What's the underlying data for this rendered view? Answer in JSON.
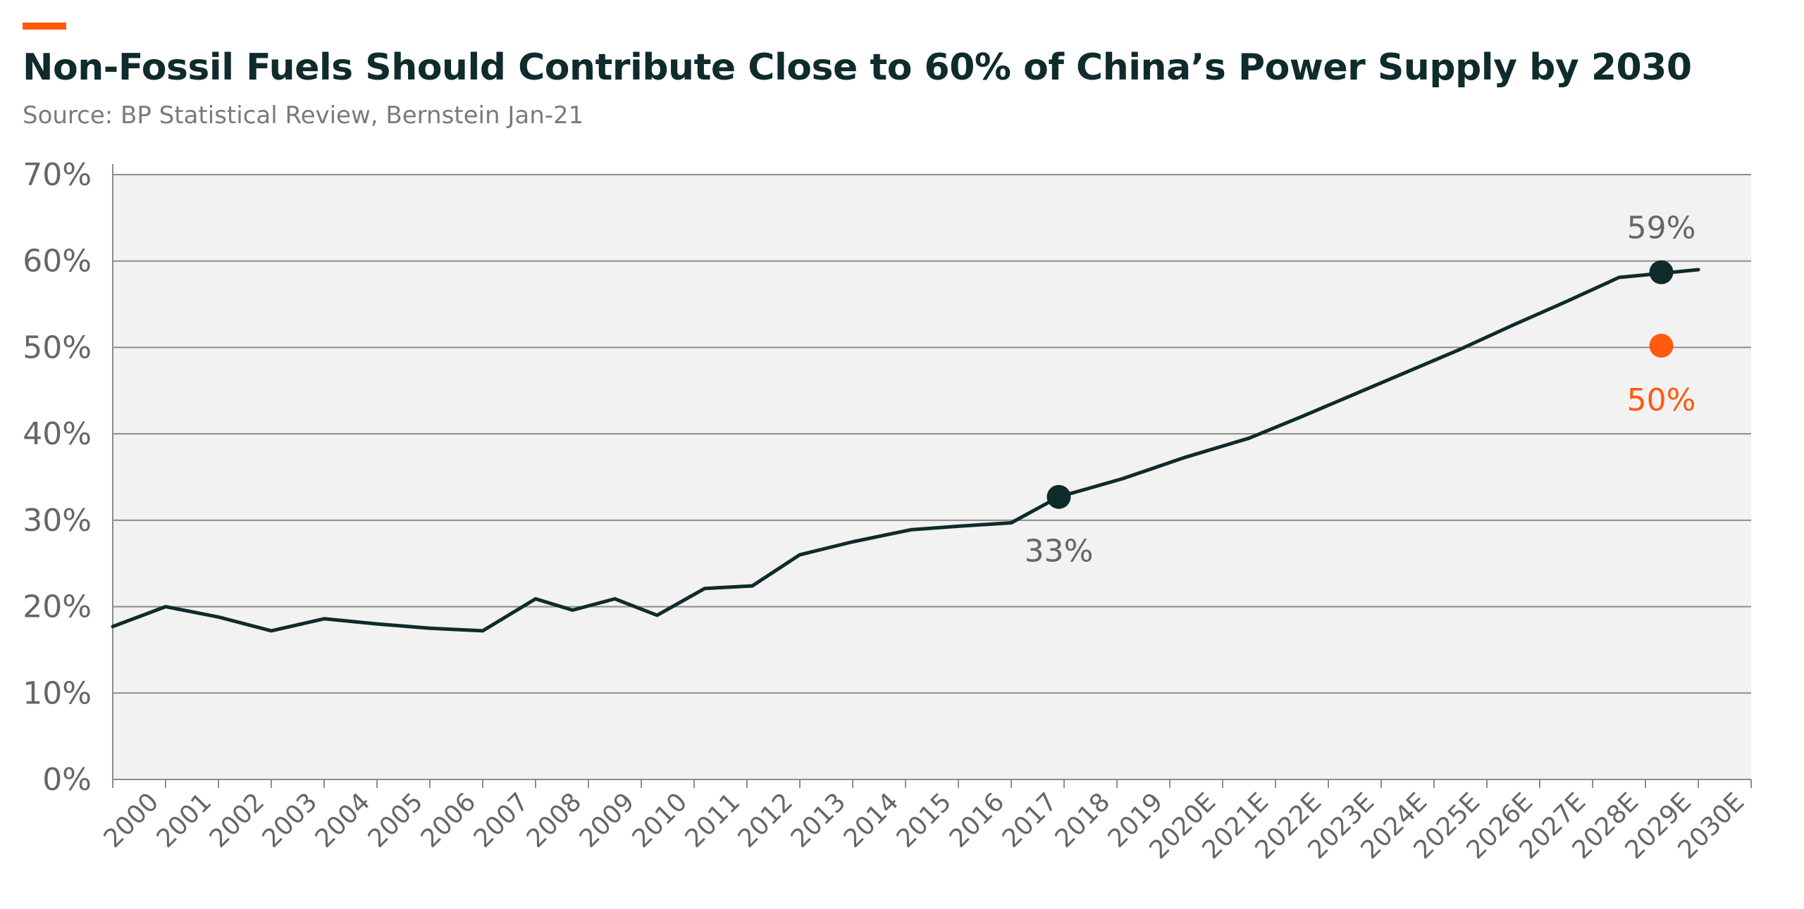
{
  "title": "Non-Fossil Fuels Should Contribute Close to 60% of China’s Power Supply by 2030",
  "subtitle": "Source: BP Statistical Review, Bernstein Jan-21",
  "colors": {
    "accent": "#ff5a0d",
    "line": "#0f2b2b",
    "plot_bg": "#f2f2f2",
    "grid": "#8c8c8c",
    "label": "#666666"
  },
  "chart_data": {
    "type": "line",
    "title": "Non-Fossil Fuels Should Contribute Close to 60% of China’s Power Supply by 2030",
    "xlabel": "",
    "ylabel": "",
    "ylim": [
      0,
      70
    ],
    "yticks": [
      "0%",
      "10%",
      "20%",
      "30%",
      "40%",
      "50%",
      "60%",
      "70%"
    ],
    "grid": true,
    "categories": [
      "2000",
      "2001",
      "2002",
      "2003",
      "2004",
      "2005",
      "2006",
      "2007",
      "2008",
      "2009",
      "2010",
      "2011",
      "2012",
      "2013",
      "2014",
      "2015",
      "2016",
      "2017",
      "2018",
      "2019",
      "2020E",
      "2021E",
      "2022E",
      "2023E",
      "2024E",
      "2025E",
      "2026E",
      "2027E",
      "2028E",
      "2029E",
      "2030E"
    ],
    "series": [
      {
        "name": "",
        "x": [
          -0.5,
          0.5,
          1.5,
          2.5,
          3.5,
          4.5,
          5.5,
          6.5,
          7.5,
          8.2,
          9.0,
          9.8,
          10.7,
          11.6,
          12.5,
          13.5,
          14.6,
          15.5,
          16.5,
          17.4,
          18.6,
          19.8,
          21.0,
          22.0,
          23.0,
          24.0,
          25.0,
          26.0,
          27.0,
          28.0,
          29.0,
          29.5
        ],
        "values": [
          17.7,
          20.0,
          18.8,
          17.2,
          18.6,
          18.0,
          17.5,
          17.2,
          20.9,
          19.6,
          20.9,
          19.0,
          22.1,
          22.4,
          26.0,
          27.5,
          28.9,
          29.3,
          29.7,
          32.7,
          34.8,
          37.3,
          39.5,
          42.0,
          44.6,
          47.2,
          49.8,
          52.6,
          55.3,
          58.1,
          58.7,
          59.0
        ]
      }
    ],
    "annotations": [
      {
        "category": "2019",
        "x": 17.4,
        "value": 32.7,
        "label": "33%",
        "marker": true,
        "label_position": "below",
        "color": "#666666",
        "marker_color": "#0f2b2b"
      },
      {
        "category": "2030E",
        "x": 28.8,
        "value": 58.7,
        "label": "59%",
        "marker": true,
        "label_position": "above",
        "color": "#666666",
        "marker_color": "#0f2b2b"
      },
      {
        "category": "2030E",
        "x": 28.8,
        "value": 50.2,
        "label": "50%",
        "marker": true,
        "label_position": "below",
        "color": "#ff5a0d",
        "marker_color": "#ff5a0d"
      }
    ]
  }
}
